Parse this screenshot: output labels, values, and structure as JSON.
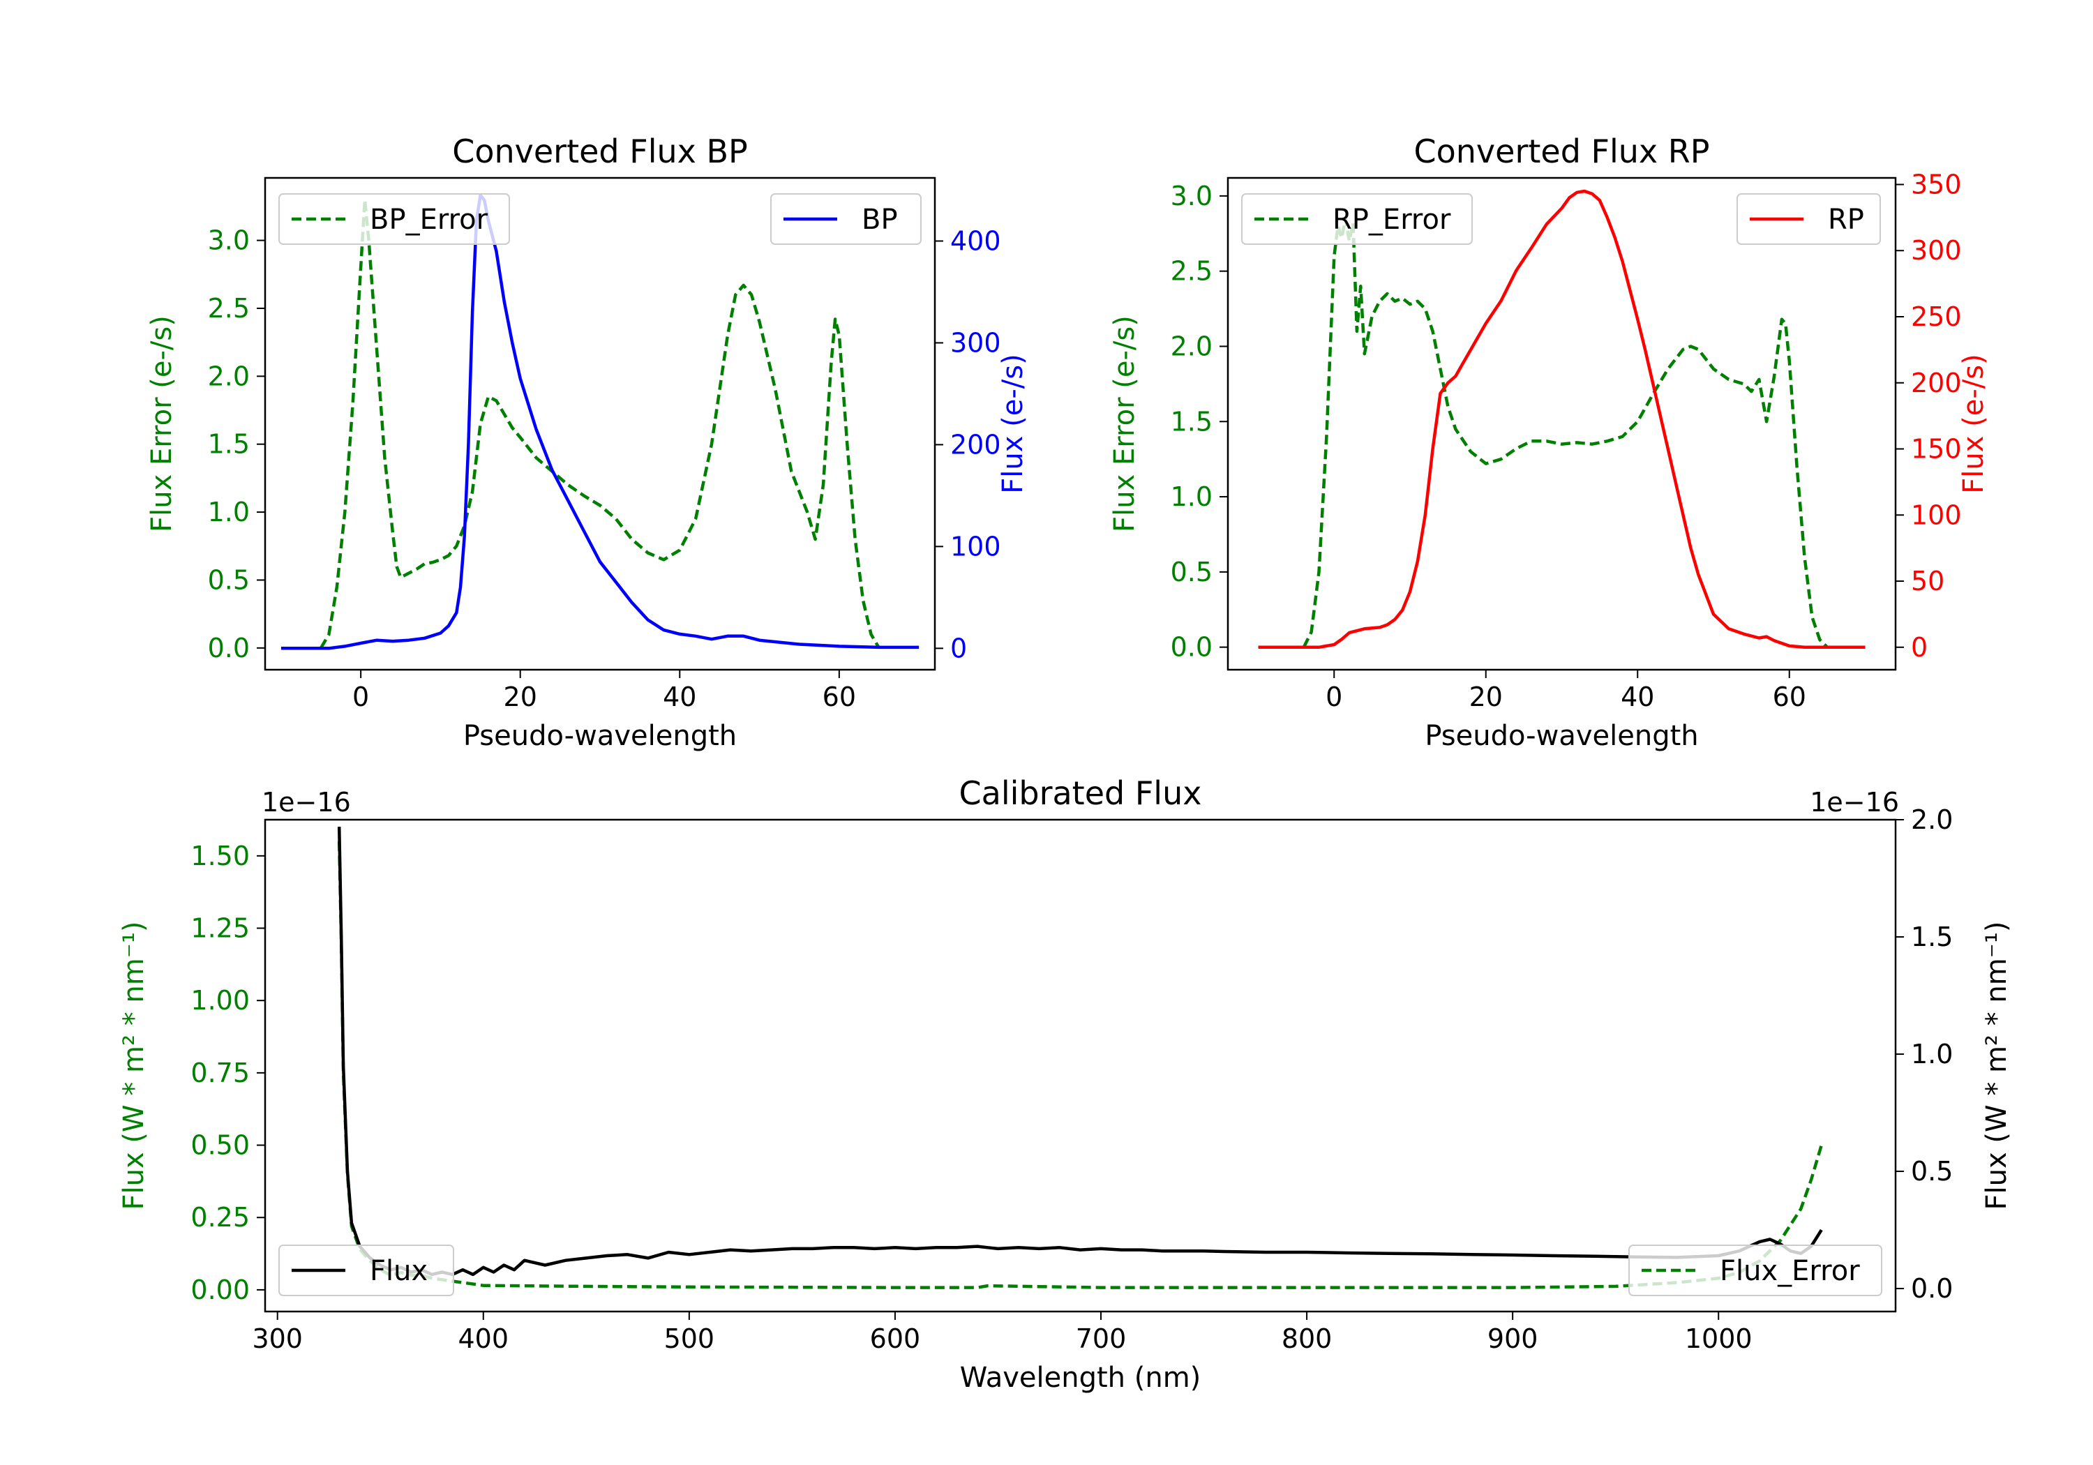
{
  "colors": {
    "green": "#008000",
    "blue": "#0000ff",
    "red": "#ff0000",
    "black": "#000000"
  },
  "chart_data": [
    {
      "type": "line",
      "title": "Converted Flux BP",
      "xlabel": "Pseudo-wavelength",
      "ylabel_left": "Flux Error (e-/s)",
      "ylabel_right": "Flux (e-/s)",
      "xlim": [
        -12,
        72
      ],
      "ylim_left": [
        -0.16,
        3.46
      ],
      "ylim_right": [
        -21,
        462
      ],
      "xticks": [
        "0",
        "20",
        "40",
        "60"
      ],
      "yticks_left": [
        "0.0",
        "0.5",
        "1.0",
        "1.5",
        "2.0",
        "2.5",
        "3.0"
      ],
      "yticks_right": [
        "0",
        "100",
        "200",
        "300",
        "400"
      ],
      "series": [
        {
          "name": "BP_Error",
          "axis": "left",
          "style": "dashed",
          "color": "green",
          "x": [
            -5,
            -4,
            -3,
            -2,
            -1,
            0,
            0.5,
            1,
            2,
            3,
            4,
            4.5,
            5,
            6,
            7,
            8,
            9,
            10,
            11,
            12,
            13,
            14,
            15,
            16,
            17,
            18,
            19,
            20,
            22,
            24,
            26,
            28,
            30,
            32,
            34,
            36,
            38,
            40,
            42,
            44,
            46,
            47,
            48,
            49,
            50,
            52,
            54,
            56,
            57,
            58,
            59,
            59.5,
            60,
            61,
            62,
            63,
            64,
            65
          ],
          "values": [
            0.0,
            0.1,
            0.45,
            1.0,
            1.8,
            2.8,
            3.3,
            3.0,
            2.2,
            1.4,
            0.85,
            0.6,
            0.52,
            0.55,
            0.58,
            0.62,
            0.63,
            0.65,
            0.68,
            0.75,
            0.9,
            1.15,
            1.65,
            1.85,
            1.82,
            1.72,
            1.62,
            1.55,
            1.4,
            1.3,
            1.2,
            1.12,
            1.05,
            0.95,
            0.8,
            0.7,
            0.65,
            0.72,
            0.95,
            1.5,
            2.3,
            2.6,
            2.67,
            2.6,
            2.4,
            1.9,
            1.3,
            1.0,
            0.8,
            1.2,
            2.1,
            2.42,
            2.3,
            1.5,
            0.8,
            0.35,
            0.1,
            0.0
          ]
        },
        {
          "name": "BP",
          "axis": "right",
          "style": "solid",
          "color": "blue",
          "x": [
            -10,
            -4,
            -2,
            0,
            2,
            4,
            6,
            8,
            10,
            11,
            12,
            12.5,
            13,
            13.5,
            14,
            14.5,
            15,
            15.5,
            16,
            17,
            18,
            19,
            20,
            22,
            24,
            26,
            28,
            30,
            32,
            34,
            36,
            38,
            40,
            42,
            44,
            46,
            48,
            50,
            55,
            60,
            65,
            70
          ],
          "values": [
            0,
            0,
            2,
            5,
            8,
            7,
            8,
            10,
            15,
            22,
            35,
            60,
            110,
            200,
            330,
            420,
            445,
            440,
            420,
            390,
            340,
            300,
            265,
            215,
            175,
            145,
            115,
            85,
            65,
            45,
            28,
            18,
            14,
            12,
            9,
            12,
            12,
            8,
            4,
            2,
            1,
            1
          ]
        }
      ],
      "legend": [
        {
          "label": "BP_Error",
          "position": "upper-left"
        },
        {
          "label": "BP",
          "position": "upper-right"
        }
      ]
    },
    {
      "type": "line",
      "title": "Converted Flux RP",
      "xlabel": "Pseudo-wavelength",
      "ylabel_left": "Flux Error (e-/s)",
      "ylabel_right": "Flux (e-/s)",
      "xlim": [
        -14,
        74
      ],
      "ylim_left": [
        -0.15,
        3.12
      ],
      "ylim_right": [
        -17,
        355
      ],
      "xticks": [
        "0",
        "20",
        "40",
        "60"
      ],
      "yticks_left": [
        "0.0",
        "0.5",
        "1.0",
        "1.5",
        "2.0",
        "2.5",
        "3.0"
      ],
      "yticks_right": [
        "0",
        "50",
        "100",
        "150",
        "200",
        "250",
        "300",
        "350"
      ],
      "series": [
        {
          "name": "RP_Error",
          "axis": "left",
          "style": "dashed",
          "color": "green",
          "x": [
            -4,
            -3,
            -2,
            -1,
            0,
            0.5,
            1,
            1.5,
            2,
            2.5,
            3,
            3.5,
            4,
            5,
            6,
            7,
            8,
            9,
            10,
            11,
            12,
            13,
            14,
            15,
            16,
            18,
            20,
            22,
            24,
            26,
            28,
            30,
            32,
            34,
            36,
            38,
            40,
            42,
            44,
            46,
            47,
            48,
            50,
            52,
            54,
            55,
            56,
            57,
            57.5,
            58,
            59,
            59.5,
            60,
            61,
            62,
            63,
            64,
            65
          ],
          "values": [
            0.0,
            0.1,
            0.5,
            1.4,
            2.6,
            2.8,
            2.72,
            2.85,
            2.7,
            2.82,
            2.1,
            2.4,
            1.95,
            2.2,
            2.3,
            2.35,
            2.3,
            2.32,
            2.28,
            2.3,
            2.25,
            2.1,
            1.85,
            1.6,
            1.45,
            1.3,
            1.22,
            1.25,
            1.32,
            1.37,
            1.37,
            1.35,
            1.36,
            1.35,
            1.37,
            1.4,
            1.5,
            1.68,
            1.85,
            1.98,
            2.0,
            1.98,
            1.85,
            1.78,
            1.75,
            1.7,
            1.78,
            1.5,
            1.65,
            1.8,
            2.18,
            2.15,
            1.9,
            1.2,
            0.6,
            0.2,
            0.05,
            0.0
          ]
        },
        {
          "name": "RP",
          "axis": "right",
          "style": "solid",
          "color": "red",
          "x": [
            -10,
            -2,
            -1,
            0,
            1,
            2,
            4,
            6,
            7,
            8,
            9,
            10,
            11,
            12,
            13,
            14,
            15,
            16,
            17,
            18,
            20,
            22,
            24,
            26,
            28,
            30,
            31,
            32,
            33,
            34,
            35,
            36,
            37,
            38,
            39,
            40,
            41,
            42,
            43,
            44,
            45,
            46,
            47,
            48,
            50,
            52,
            54,
            56,
            57,
            58,
            60,
            62,
            70
          ],
          "values": [
            0,
            0,
            1,
            2,
            6,
            11,
            14,
            15,
            17,
            21,
            28,
            42,
            65,
            100,
            150,
            192,
            200,
            205,
            215,
            225,
            245,
            262,
            285,
            302,
            320,
            332,
            340,
            344,
            345,
            343,
            338,
            325,
            310,
            292,
            270,
            248,
            225,
            200,
            175,
            150,
            125,
            100,
            75,
            55,
            25,
            14,
            10,
            7,
            8,
            5,
            1,
            0,
            0
          ]
        }
      ],
      "legend": [
        {
          "label": "RP_Error",
          "position": "upper-left"
        },
        {
          "label": "RP",
          "position": "upper-right"
        }
      ]
    },
    {
      "type": "line",
      "title": "Calibrated Flux",
      "xlabel": "Wavelength (nm)",
      "ylabel_left": "Flux (W * m² * nm⁻¹)",
      "ylabel_right": "Flux (W * m² * nm⁻¹)",
      "offset_left": "1e−16",
      "offset_right": "1e−16",
      "xlim": [
        294,
        1086
      ],
      "ylim_left": [
        -0.075,
        1.625
      ],
      "ylim_right": [
        -0.098,
        2.0
      ],
      "xticks": [
        "300",
        "400",
        "500",
        "600",
        "700",
        "800",
        "900",
        "1000"
      ],
      "yticks_left": [
        "0.00",
        "0.25",
        "0.50",
        "0.75",
        "1.00",
        "1.25",
        "1.50"
      ],
      "yticks_right": [
        "0.0",
        "0.5",
        "1.0",
        "1.5",
        "2.0"
      ],
      "series": [
        {
          "name": "Flux_Error",
          "axis": "left",
          "style": "dashed",
          "color": "green",
          "x": [
            330,
            331,
            332,
            334,
            336,
            340,
            345,
            350,
            355,
            360,
            365,
            370,
            375,
            380,
            385,
            390,
            400,
            450,
            500,
            600,
            640,
            645,
            700,
            800,
            900,
            950,
            980,
            1000,
            1010,
            1020,
            1030,
            1040,
            1045,
            1050
          ],
          "values": [
            1.55,
            1.2,
            0.75,
            0.4,
            0.22,
            0.14,
            0.1,
            0.07,
            0.05,
            0.06,
            0.05,
            0.05,
            0.04,
            0.035,
            0.03,
            0.025,
            0.015,
            0.012,
            0.01,
            0.008,
            0.008,
            0.014,
            0.008,
            0.008,
            0.008,
            0.012,
            0.025,
            0.04,
            0.06,
            0.1,
            0.17,
            0.28,
            0.38,
            0.5
          ]
        },
        {
          "name": "Flux",
          "axis": "right",
          "style": "solid",
          "color": "black",
          "x": [
            330,
            331,
            332,
            334,
            336,
            340,
            345,
            350,
            355,
            360,
            365,
            370,
            375,
            380,
            385,
            390,
            395,
            400,
            405,
            410,
            415,
            420,
            430,
            440,
            450,
            460,
            470,
            480,
            490,
            500,
            510,
            520,
            530,
            540,
            550,
            560,
            570,
            580,
            590,
            600,
            610,
            620,
            630,
            640,
            645,
            650,
            660,
            670,
            680,
            690,
            700,
            710,
            720,
            730,
            740,
            750,
            760,
            780,
            800,
            820,
            840,
            860,
            880,
            900,
            920,
            940,
            960,
            980,
            1000,
            1010,
            1020,
            1025,
            1030,
            1035,
            1040,
            1045,
            1050
          ],
          "values": [
            1.97,
            1.5,
            0.95,
            0.5,
            0.28,
            0.18,
            0.13,
            0.1,
            0.08,
            0.09,
            0.07,
            0.08,
            0.06,
            0.07,
            0.06,
            0.08,
            0.06,
            0.09,
            0.07,
            0.1,
            0.08,
            0.12,
            0.1,
            0.12,
            0.13,
            0.14,
            0.145,
            0.13,
            0.155,
            0.145,
            0.155,
            0.165,
            0.16,
            0.165,
            0.17,
            0.17,
            0.175,
            0.175,
            0.17,
            0.175,
            0.17,
            0.175,
            0.175,
            0.18,
            0.175,
            0.17,
            0.175,
            0.17,
            0.175,
            0.165,
            0.17,
            0.165,
            0.165,
            0.16,
            0.16,
            0.16,
            0.158,
            0.155,
            0.155,
            0.152,
            0.15,
            0.148,
            0.145,
            0.143,
            0.14,
            0.138,
            0.135,
            0.133,
            0.14,
            0.16,
            0.2,
            0.21,
            0.19,
            0.16,
            0.15,
            0.18,
            0.25
          ]
        }
      ],
      "legend": [
        {
          "label": "Flux",
          "position": "lower-left"
        },
        {
          "label": "Flux_Error",
          "position": "lower-right"
        }
      ]
    }
  ]
}
